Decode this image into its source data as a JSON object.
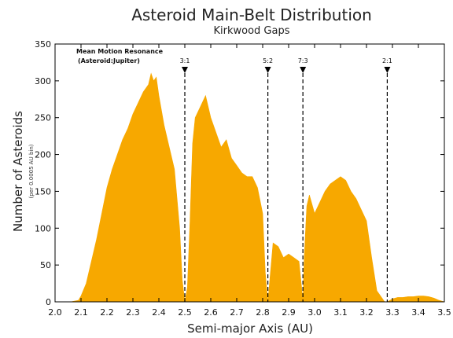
{
  "chart_data": {
    "type": "area",
    "title": "Asteroid Main-Belt Distribution",
    "subtitle": "Kirkwood Gaps",
    "xlabel": "Semi-major Axis (AU)",
    "ylabel": "Number of Asteroids",
    "ylabel_sub": "(per 0.0005 AU bin)",
    "xlim": [
      2.0,
      3.5
    ],
    "ylim": [
      0,
      350
    ],
    "x_ticks": [
      2.0,
      2.1,
      2.2,
      2.3,
      2.4,
      2.5,
      2.6,
      2.7,
      2.8,
      2.9,
      3.0,
      3.1,
      3.2,
      3.3,
      3.4,
      3.5
    ],
    "x_tick_labels": [
      "2.0",
      "2.1",
      "2.2",
      "2.3",
      "2.4",
      "2.5",
      "2.6",
      "2.7",
      "2.8",
      "2.9",
      "3.0",
      "3.1",
      "3.2",
      "3.3",
      "3.4",
      "3.5"
    ],
    "y_ticks": [
      0,
      50,
      100,
      150,
      200,
      250,
      300,
      350
    ],
    "y_tick_labels": [
      "0",
      "50",
      "100",
      "150",
      "200",
      "250",
      "300",
      "350"
    ],
    "grid": false,
    "fill_color": "#f7a800",
    "resonance_title_line1": "Mean Motion Resonance",
    "resonance_title_line2": "(Asteroid:Jupiter)",
    "resonances": [
      {
        "label": "3:1",
        "x": 2.5
      },
      {
        "label": "5:2",
        "x": 2.82
      },
      {
        "label": "7:3",
        "x": 2.955
      },
      {
        "label": "2:1",
        "x": 3.28
      }
    ],
    "x": [
      2.0,
      2.06,
      2.09,
      2.1,
      2.12,
      2.14,
      2.16,
      2.18,
      2.2,
      2.22,
      2.24,
      2.26,
      2.28,
      2.3,
      2.32,
      2.34,
      2.36,
      2.37,
      2.38,
      2.39,
      2.4,
      2.42,
      2.44,
      2.46,
      2.48,
      2.49,
      2.5,
      2.51,
      2.52,
      2.53,
      2.54,
      2.56,
      2.58,
      2.6,
      2.62,
      2.64,
      2.66,
      2.68,
      2.7,
      2.72,
      2.74,
      2.76,
      2.78,
      2.8,
      2.81,
      2.82,
      2.83,
      2.84,
      2.86,
      2.88,
      2.9,
      2.92,
      2.94,
      2.95,
      2.955,
      2.96,
      2.97,
      2.98,
      3.0,
      3.02,
      3.04,
      3.06,
      3.08,
      3.1,
      3.12,
      3.14,
      3.16,
      3.18,
      3.2,
      3.22,
      3.24,
      3.26,
      3.27,
      3.28,
      3.29,
      3.3,
      3.32,
      3.34,
      3.36,
      3.38,
      3.4,
      3.42,
      3.44,
      3.46,
      3.48,
      3.5
    ],
    "y": [
      0,
      0,
      2,
      8,
      25,
      55,
      85,
      120,
      155,
      180,
      200,
      220,
      235,
      255,
      270,
      285,
      295,
      310,
      300,
      305,
      280,
      240,
      210,
      180,
      100,
      30,
      0,
      20,
      110,
      215,
      250,
      265,
      280,
      250,
      230,
      210,
      220,
      195,
      185,
      175,
      170,
      170,
      155,
      120,
      40,
      0,
      40,
      80,
      75,
      60,
      65,
      60,
      55,
      20,
      0,
      60,
      130,
      145,
      120,
      135,
      150,
      160,
      165,
      170,
      165,
      150,
      140,
      125,
      110,
      60,
      15,
      5,
      0,
      0,
      2,
      4,
      6,
      6,
      7,
      7,
      8,
      8,
      7,
      5,
      2,
      0
    ]
  }
}
